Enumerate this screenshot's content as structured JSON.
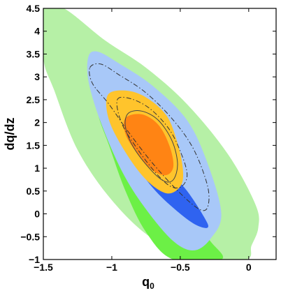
{
  "chart_data": {
    "type": "contour",
    "xlabel": "q",
    "xlabel_subscript": "0",
    "ylabel": "dq/dz",
    "xlim": [
      -1.5,
      0.2
    ],
    "ylim": [
      -1,
      4.5
    ],
    "xticks": [
      -1.5,
      -1,
      -0.5,
      0
    ],
    "xtick_labels": [
      "−1.5",
      "−1",
      "−0.5",
      "0"
    ],
    "yticks": [
      -1,
      -0.5,
      0,
      0.5,
      1,
      1.5,
      2,
      2.5,
      3,
      3.5,
      4,
      4.5
    ],
    "ytick_labels": [
      "−1",
      "−0.5",
      "0",
      "0.5",
      "1",
      "1.5",
      "2",
      "2.5",
      "3",
      "3.5",
      "4",
      "4.5"
    ],
    "grid": false,
    "regions": [
      {
        "id": "green-outer",
        "color": "#b6f0a6",
        "points": [
          [
            -1.5,
            4.5
          ],
          [
            -1.35,
            4.5
          ],
          [
            -1.05,
            3.8
          ],
          [
            -0.75,
            3.2
          ],
          [
            -0.45,
            2.4
          ],
          [
            -0.15,
            1.3
          ],
          [
            0.05,
            0.2
          ],
          [
            0.07,
            -0.3
          ],
          [
            0.02,
            -0.7
          ],
          [
            -0.02,
            -1.0
          ],
          [
            -0.35,
            -1.0
          ],
          [
            -0.7,
            -0.55
          ],
          [
            -1.0,
            0.3
          ],
          [
            -1.25,
            1.4
          ],
          [
            -1.42,
            2.7
          ],
          [
            -1.5,
            3.4
          ]
        ]
      },
      {
        "id": "green-inner",
        "color": "#6cf046",
        "points": [
          [
            -1.07,
            2.6
          ],
          [
            -0.9,
            2.2
          ],
          [
            -0.7,
            1.4
          ],
          [
            -0.55,
            0.6
          ],
          [
            -0.45,
            0.0
          ],
          [
            -0.28,
            -0.6
          ],
          [
            -0.2,
            -1.0
          ],
          [
            -0.55,
            -1.0
          ],
          [
            -0.75,
            -0.4
          ],
          [
            -0.9,
            0.5
          ],
          [
            -1.02,
            1.5
          ],
          [
            -1.1,
            2.2
          ]
        ]
      },
      {
        "id": "blue-outer",
        "color": "#a8c8f8",
        "points": [
          [
            -1.17,
            3.45
          ],
          [
            -1.1,
            3.55
          ],
          [
            -0.95,
            3.3
          ],
          [
            -0.7,
            2.8
          ],
          [
            -0.45,
            2.05
          ],
          [
            -0.3,
            1.1
          ],
          [
            -0.2,
            0.0
          ],
          [
            -0.28,
            -0.55
          ],
          [
            -0.4,
            -0.8
          ],
          [
            -0.55,
            -0.6
          ],
          [
            -0.75,
            0.1
          ],
          [
            -0.92,
            0.9
          ],
          [
            -1.08,
            2.0
          ],
          [
            -1.17,
            2.9
          ]
        ]
      },
      {
        "id": "blue-inner",
        "color": "#2f63f0",
        "points": [
          [
            -0.9,
            2.0
          ],
          [
            -0.75,
            1.6
          ],
          [
            -0.6,
            1.0
          ],
          [
            -0.45,
            0.5
          ],
          [
            -0.32,
            -0.1
          ],
          [
            -0.3,
            -0.3
          ],
          [
            -0.38,
            -0.25
          ],
          [
            -0.5,
            0.0
          ],
          [
            -0.68,
            0.5
          ],
          [
            -0.83,
            1.1
          ],
          [
            -0.9,
            1.6
          ]
        ]
      },
      {
        "id": "yellow",
        "color": "#ffc42c",
        "points": [
          [
            -1.03,
            2.6
          ],
          [
            -0.9,
            2.7
          ],
          [
            -0.75,
            2.55
          ],
          [
            -0.6,
            2.15
          ],
          [
            -0.52,
            1.55
          ],
          [
            -0.48,
            0.95
          ],
          [
            -0.5,
            0.6
          ],
          [
            -0.6,
            0.45
          ],
          [
            -0.75,
            0.75
          ],
          [
            -0.9,
            1.35
          ],
          [
            -1.02,
            2.05
          ]
        ]
      },
      {
        "id": "orange",
        "color": "#ff8414",
        "points": [
          [
            -0.9,
            2.1
          ],
          [
            -0.78,
            2.18
          ],
          [
            -0.66,
            1.95
          ],
          [
            -0.58,
            1.5
          ],
          [
            -0.55,
            1.05
          ],
          [
            -0.6,
            0.85
          ],
          [
            -0.7,
            0.95
          ],
          [
            -0.82,
            1.35
          ],
          [
            -0.9,
            1.75
          ]
        ]
      }
    ],
    "contour_lines": [
      {
        "id": "dashdot-outer",
        "style": "dashdot",
        "color": "#333333",
        "points": [
          [
            -1.16,
            3.2
          ],
          [
            -1.08,
            3.28
          ],
          [
            -0.95,
            3.05
          ],
          [
            -0.75,
            2.65
          ],
          [
            -0.55,
            2.05
          ],
          [
            -0.4,
            1.4
          ],
          [
            -0.3,
            0.6
          ],
          [
            -0.3,
            0.15
          ],
          [
            -0.36,
            0.1
          ],
          [
            -0.5,
            0.45
          ],
          [
            -0.7,
            1.1
          ],
          [
            -0.88,
            1.8
          ],
          [
            -1.02,
            2.4
          ],
          [
            -1.14,
            2.85
          ]
        ]
      },
      {
        "id": "dashdot-inner",
        "style": "dashdot",
        "color": "#333333",
        "points": [
          [
            -0.96,
            2.5
          ],
          [
            -0.86,
            2.52
          ],
          [
            -0.72,
            2.3
          ],
          [
            -0.58,
            1.85
          ],
          [
            -0.49,
            1.3
          ],
          [
            -0.45,
            0.85
          ],
          [
            -0.49,
            0.6
          ],
          [
            -0.57,
            0.6
          ],
          [
            -0.68,
            0.9
          ],
          [
            -0.82,
            1.45
          ],
          [
            -0.93,
            2.0
          ]
        ]
      },
      {
        "id": "solid-thin",
        "style": "solid",
        "color": "#444444",
        "points": [
          [
            -0.88,
            2.2
          ],
          [
            -0.78,
            2.25
          ],
          [
            -0.66,
            2.05
          ],
          [
            -0.56,
            1.6
          ],
          [
            -0.52,
            1.1
          ],
          [
            -0.55,
            0.75
          ],
          [
            -0.62,
            0.72
          ],
          [
            -0.72,
            0.98
          ],
          [
            -0.84,
            1.45
          ],
          [
            -0.9,
            1.9
          ]
        ]
      }
    ]
  }
}
